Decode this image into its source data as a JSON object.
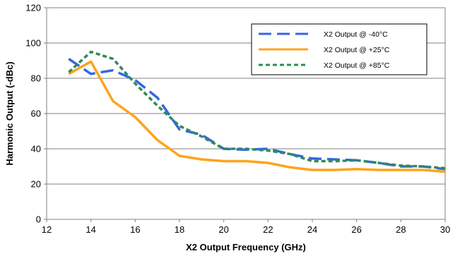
{
  "chart_data": {
    "type": "line",
    "title": "",
    "xlabel": "X2 Output Frequency (GHz)",
    "ylabel": "Harmonic Output (-dBc)",
    "xlim": [
      12,
      30
    ],
    "ylim": [
      0,
      120
    ],
    "xticks": [
      12,
      14,
      16,
      18,
      20,
      22,
      24,
      26,
      28,
      30
    ],
    "yticks": [
      0,
      20,
      40,
      60,
      80,
      100,
      120
    ],
    "xtick_labels": [
      "12",
      "14",
      "16",
      "18",
      "20",
      "22",
      "24",
      "26",
      "28",
      "30"
    ],
    "ytick_labels": [
      "0",
      "20",
      "40",
      "60",
      "80",
      "100",
      "120"
    ],
    "grid": true,
    "legend_position": "top-right",
    "series": [
      {
        "name": "X2 Output @ -40°C",
        "color": "#3366e6",
        "style": "long-dash",
        "x": [
          13,
          14,
          15,
          16,
          17,
          18,
          19,
          20,
          21,
          22,
          23,
          24,
          25,
          26,
          27,
          28,
          29,
          30
        ],
        "y": [
          91,
          82.5,
          84.5,
          79,
          69,
          51,
          48,
          40,
          39.5,
          40,
          37,
          34.5,
          34,
          33.5,
          32,
          30,
          30,
          28.5
        ]
      },
      {
        "name": "X2 Output @ +25°C",
        "color": "#ffa31a",
        "style": "solid",
        "x": [
          13,
          14,
          15,
          16,
          17,
          18,
          19,
          20,
          21,
          22,
          23,
          24,
          25,
          26,
          27,
          28,
          29,
          30
        ],
        "y": [
          82.5,
          89.5,
          67,
          58,
          45,
          36,
          34,
          33,
          33,
          32,
          29.5,
          28,
          28,
          28.5,
          28,
          28,
          28,
          27
        ]
      },
      {
        "name": "X2 Output @ +85°C",
        "color": "#2e8b57",
        "style": "short-dash",
        "x": [
          13,
          14,
          15,
          16,
          17,
          18,
          19,
          20,
          21,
          22,
          23,
          24,
          25,
          26,
          27,
          28,
          29,
          30
        ],
        "y": [
          83.5,
          95,
          91,
          77,
          64.5,
          53,
          47,
          40,
          40,
          39,
          37,
          33,
          33,
          33.5,
          32,
          30.5,
          30,
          29
        ]
      }
    ]
  }
}
